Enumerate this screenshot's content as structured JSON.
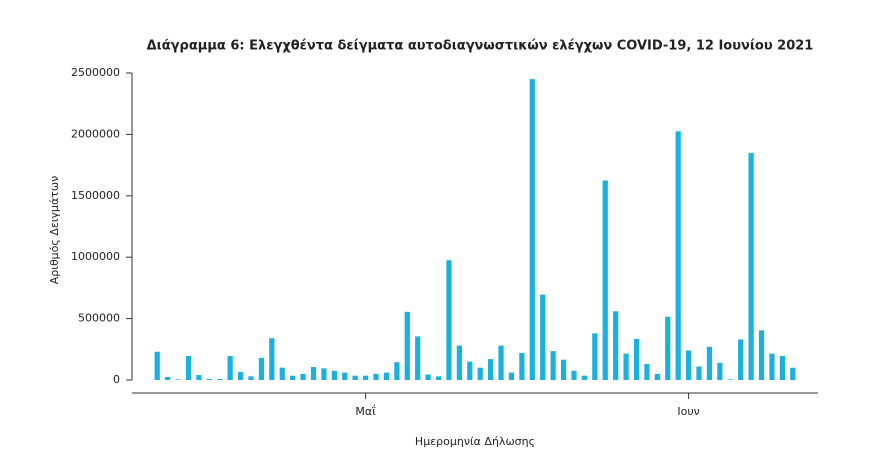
{
  "chart_data": {
    "type": "bar",
    "title": "Διάγραμμα 6: Ελεγχθέντα δείγματα αυτοδιαγνωστικών ελέγχων COVID-19, 12 Ιουνίου 2021",
    "xlabel": "Ημερομηνία Δήλωσης",
    "ylabel": "Αριθμός Δειγμάτων",
    "categories": [
      null,
      null,
      null,
      null,
      null,
      null,
      null,
      null,
      null,
      null,
      null,
      null,
      null,
      null,
      null,
      null,
      null,
      null,
      null,
      null,
      "Μαΐ",
      null,
      null,
      null,
      null,
      null,
      null,
      null,
      null,
      null,
      null,
      null,
      null,
      null,
      null,
      null,
      null,
      null,
      null,
      null,
      null,
      null,
      null,
      null,
      null,
      null,
      null,
      null,
      null,
      null,
      null,
      "Ιουν",
      null,
      null,
      null,
      null,
      null,
      null,
      null,
      null,
      null,
      null
    ],
    "values": [
      230000,
      25000,
      5000,
      195000,
      40000,
      8000,
      8000,
      195000,
      65000,
      30000,
      180000,
      340000,
      100000,
      35000,
      50000,
      105000,
      95000,
      75000,
      60000,
      35000,
      35000,
      50000,
      60000,
      145000,
      555000,
      355000,
      45000,
      30000,
      975000,
      280000,
      150000,
      100000,
      170000,
      280000,
      60000,
      220000,
      2450000,
      695000,
      235000,
      165000,
      75000,
      35000,
      380000,
      1625000,
      560000,
      215000,
      335000,
      130000,
      50000,
      515000,
      2025000,
      240000,
      110000,
      270000,
      140000,
      5000,
      330000,
      1850000,
      405000,
      215000,
      195000,
      100000
    ],
    "color": "#1ab0e0",
    "ylim": [
      0,
      2500000
    ],
    "yticks": [
      0,
      500000,
      1000000,
      1500000,
      2000000,
      2500000
    ]
  }
}
